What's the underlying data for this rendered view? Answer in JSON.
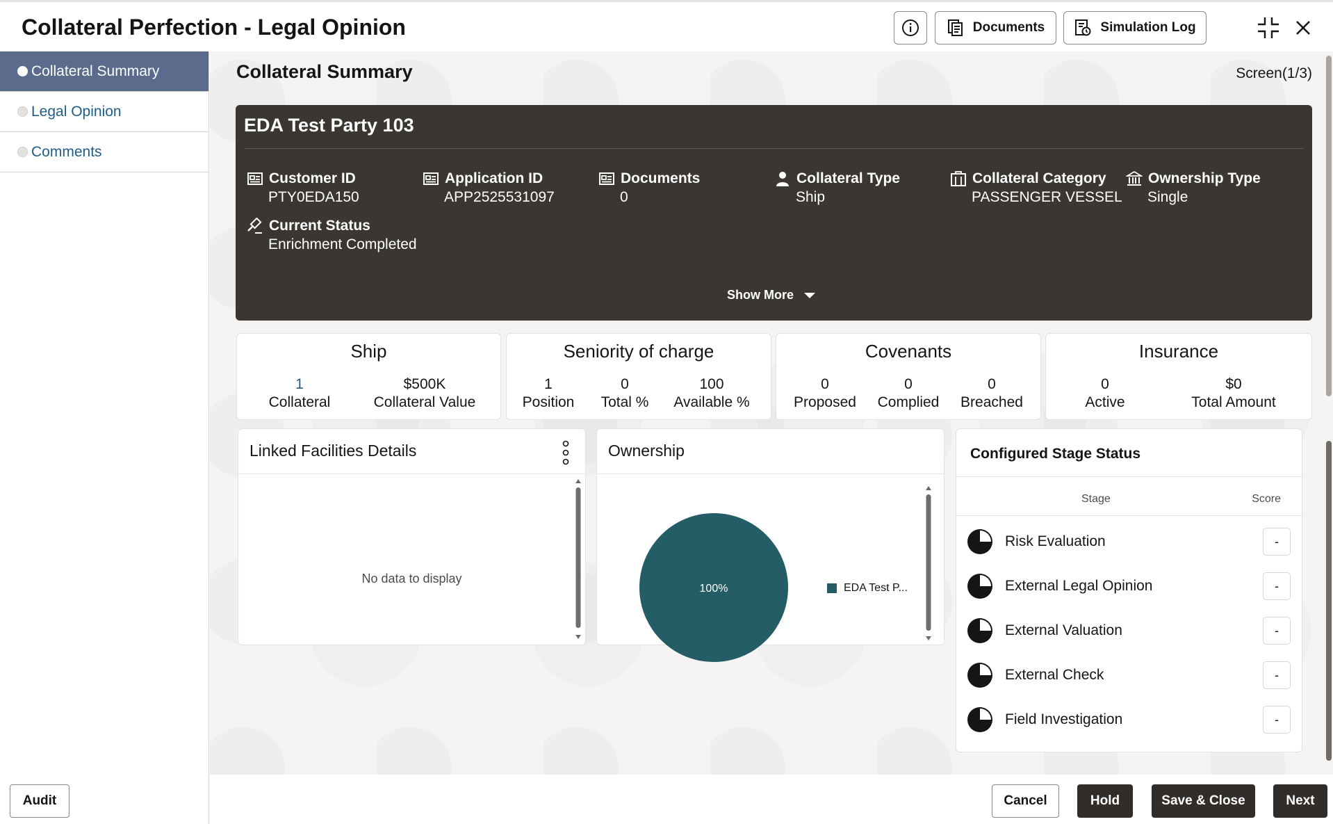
{
  "header": {
    "title": "Collateral Perfection - Legal Opinion",
    "documents_label": "Documents",
    "simulation_log_label": "Simulation Log"
  },
  "sidebar": {
    "items": [
      {
        "label": "Collateral Summary"
      },
      {
        "label": "Legal Opinion"
      },
      {
        "label": "Comments"
      }
    ],
    "audit_label": "Audit"
  },
  "main": {
    "section_title": "Collateral Summary",
    "screen_indicator": "Screen(1/3)"
  },
  "hero": {
    "party_name": "EDA Test Party 103",
    "fields": [
      {
        "label": "Customer ID",
        "value": "PTY0EDA150",
        "icon": "id-card-icon"
      },
      {
        "label": "Application ID",
        "value": "APP2525531097",
        "icon": "id-card-icon"
      },
      {
        "label": "Documents",
        "value": "0",
        "icon": "id-card-icon"
      },
      {
        "label": "Collateral Type",
        "value": "Ship",
        "icon": "person-icon"
      },
      {
        "label": "Collateral Category",
        "value": "PASSENGER VESSEL",
        "icon": "building-icon"
      },
      {
        "label": "Ownership Type",
        "value": "Single",
        "icon": "bank-icon"
      },
      {
        "label": "Current Status",
        "value": "Enrichment Completed",
        "icon": "gavel-icon"
      }
    ],
    "show_more_label": "Show More"
  },
  "stats": [
    {
      "title": "Ship",
      "cols": [
        {
          "num": "1",
          "label": "Collateral"
        },
        {
          "num": "$500K",
          "label": "Collateral Value"
        }
      ]
    },
    {
      "title": "Seniority of charge",
      "cols": [
        {
          "num": "1",
          "label": "Position"
        },
        {
          "num": "0",
          "label": "Total %"
        },
        {
          "num": "100",
          "label": "Available %"
        }
      ]
    },
    {
      "title": "Covenants",
      "cols": [
        {
          "num": "0",
          "label": "Proposed"
        },
        {
          "num": "0",
          "label": "Complied"
        },
        {
          "num": "0",
          "label": "Breached"
        }
      ]
    },
    {
      "title": "Insurance",
      "cols": [
        {
          "num": "0",
          "label": "Active"
        },
        {
          "num": "$0",
          "label": "Total Amount"
        }
      ]
    }
  ],
  "linked_facilities": {
    "title": "Linked Facilities Details",
    "empty_text": "No data to display"
  },
  "ownership": {
    "title": "Ownership",
    "slice_label": "100%",
    "legend_label": "EDA Test P...",
    "color": "#245d66"
  },
  "stage_status": {
    "title": "Configured Stage Status",
    "col_stage": "Stage",
    "col_score": "Score",
    "stages": [
      {
        "name": "Risk Evaluation",
        "score": "-"
      },
      {
        "name": "External Legal Opinion",
        "score": "-"
      },
      {
        "name": "External Valuation",
        "score": "-"
      },
      {
        "name": "External Check",
        "score": "-"
      },
      {
        "name": "Field Investigation",
        "score": "-"
      }
    ]
  },
  "footer": {
    "cancel_label": "Cancel",
    "hold_label": "Hold",
    "save_close_label": "Save & Close",
    "next_label": "Next"
  }
}
